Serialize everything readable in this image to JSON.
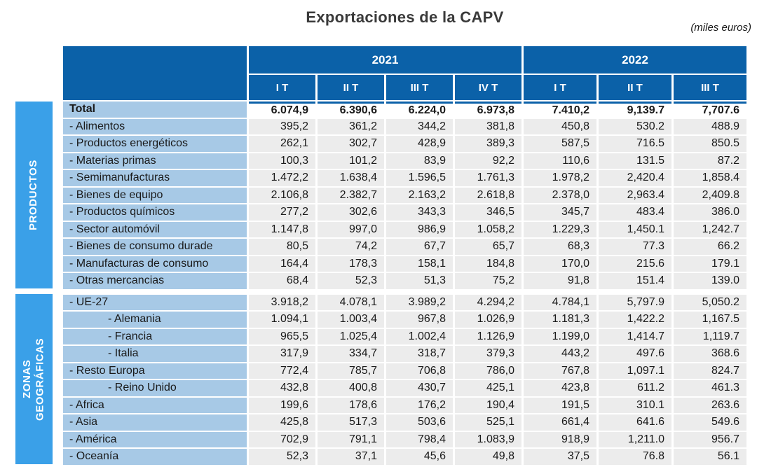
{
  "title": "Exportaciones de la CAPV",
  "units_note": "(miles euros)",
  "colors": {
    "header_blue": "#0b61a8",
    "strip_blue": "#3aa0e8",
    "row_label_blue": "#a7c9e6",
    "cell_gray": "#ececec",
    "total_row_bg": "#ffffff",
    "text": "#1a1a1a"
  },
  "table": {
    "year_groups": [
      {
        "label": "2021",
        "quarters": [
          "I T",
          "II T",
          "III T",
          "IV T"
        ]
      },
      {
        "label": "2022",
        "quarters": [
          "I T",
          "II T",
          "III T"
        ]
      }
    ],
    "sections": [
      {
        "strip": {
          "lines": [
            "PRODUCTOS"
          ]
        },
        "rows": [
          {
            "label": "Total",
            "indent": 0,
            "emphasis": "total",
            "values": [
              "6.074,9",
              "6.390,6",
              "6.224,0",
              "6.973,8",
              "7.410,2",
              "9,139.7",
              "7,707.6"
            ]
          },
          {
            "label": "- Alimentos",
            "indent": 0,
            "values": [
              "395,2",
              "361,2",
              "344,2",
              "381,8",
              "450,8",
              "530.2",
              "488.9"
            ]
          },
          {
            "label": "- Productos energéticos",
            "indent": 0,
            "values": [
              "262,1",
              "302,7",
              "428,9",
              "389,3",
              "587,5",
              "716.5",
              "850.5"
            ]
          },
          {
            "label": "- Materias primas",
            "indent": 0,
            "values": [
              "100,3",
              "101,2",
              "83,9",
              "92,2",
              "110,6",
              "131.5",
              "87.2"
            ]
          },
          {
            "label": "- Semimanufacturas",
            "indent": 0,
            "values": [
              "1.472,2",
              "1.638,4",
              "1.596,5",
              "1.761,3",
              "1.978,2",
              "2,420.4",
              "1,858.4"
            ]
          },
          {
            "label": "- Bienes de equipo",
            "indent": 0,
            "values": [
              "2.106,8",
              "2.382,7",
              "2.163,2",
              "2.618,8",
              "2.378,0",
              "2,963.4",
              "2,409.8"
            ]
          },
          {
            "label": "- Productos químicos",
            "indent": 0,
            "values": [
              "277,2",
              "302,6",
              "343,3",
              "346,5",
              "345,7",
              "483.4",
              "386.0"
            ]
          },
          {
            "label": "- Sector automóvil",
            "indent": 0,
            "values": [
              "1.147,8",
              "997,0",
              "986,9",
              "1.058,2",
              "1.229,3",
              "1,450.1",
              "1,242.7"
            ]
          },
          {
            "label": "- Bienes de consumo durade",
            "indent": 0,
            "values": [
              "80,5",
              "74,2",
              "67,7",
              "65,7",
              "68,3",
              "77.3",
              "66.2"
            ]
          },
          {
            "label": "- Manufacturas de consumo",
            "indent": 0,
            "values": [
              "164,4",
              "178,3",
              "158,1",
              "184,8",
              "170,0",
              "215.6",
              "179.1"
            ]
          },
          {
            "label": "- Otras mercancias",
            "indent": 0,
            "values": [
              "68,4",
              "52,3",
              "51,3",
              "75,2",
              "91,8",
              "151.4",
              "139.0"
            ]
          }
        ]
      },
      {
        "strip": {
          "lines": [
            "ZONAS",
            "GEOGRÁFICAS"
          ]
        },
        "rows": [
          {
            "label": "- UE-27",
            "indent": 0,
            "values": [
              "3.918,2",
              "4.078,1",
              "3.989,2",
              "4.294,2",
              "4.784,1",
              "5,797.9",
              "5,050.2"
            ]
          },
          {
            "label": "- Alemania",
            "indent": 1,
            "values": [
              "1.094,1",
              "1.003,4",
              "967,8",
              "1.026,9",
              "1.181,3",
              "1,422.2",
              "1,167.5"
            ]
          },
          {
            "label": "- Francia",
            "indent": 1,
            "values": [
              "965,5",
              "1.025,4",
              "1.002,4",
              "1.126,9",
              "1.199,0",
              "1,414.7",
              "1,119.7"
            ]
          },
          {
            "label": "- Italia",
            "indent": 1,
            "values": [
              "317,9",
              "334,7",
              "318,7",
              "379,3",
              "443,2",
              "497.6",
              "368.6"
            ]
          },
          {
            "label": "- Resto Europa",
            "indent": 0,
            "values": [
              "772,4",
              "785,7",
              "706,8",
              "786,0",
              "767,8",
              "1,097.1",
              "824.7"
            ]
          },
          {
            "label": "- Reino Unido",
            "indent": 1,
            "values": [
              "432,8",
              "400,8",
              "430,7",
              "425,1",
              "423,8",
              "611.2",
              "461.3"
            ]
          },
          {
            "label": "- Africa",
            "indent": 0,
            "values": [
              "199,6",
              "178,6",
              "176,2",
              "190,4",
              "191,5",
              "310.1",
              "263.6"
            ]
          },
          {
            "label": "- Asia",
            "indent": 0,
            "values": [
              "425,8",
              "517,3",
              "503,6",
              "525,1",
              "661,4",
              "641.6",
              "549.6"
            ]
          },
          {
            "label": "- América",
            "indent": 0,
            "values": [
              "702,9",
              "791,1",
              "798,4",
              "1.083,9",
              "918,9",
              "1,211.0",
              "956.7"
            ]
          },
          {
            "label": "- Oceanía",
            "indent": 0,
            "values": [
              "52,3",
              "37,1",
              "45,6",
              "49,8",
              "37,5",
              "76.8",
              "56.1"
            ]
          }
        ]
      }
    ]
  },
  "chart_data": {
    "type": "table",
    "title": "Exportaciones de la CAPV",
    "units": "miles euros",
    "columns": [
      "2021 I T",
      "2021 II T",
      "2021 III T",
      "2021 IV T",
      "2022 I T",
      "2022 II T",
      "2022 III T"
    ],
    "rows": [
      {
        "name": "Total",
        "group": "TOTAL",
        "values": [
          6074.9,
          6390.6,
          6224.0,
          6973.8,
          7410.2,
          9139.7,
          7707.6
        ]
      },
      {
        "name": "Alimentos",
        "group": "PRODUCTOS",
        "values": [
          395.2,
          361.2,
          344.2,
          381.8,
          450.8,
          530.2,
          488.9
        ]
      },
      {
        "name": "Productos energéticos",
        "group": "PRODUCTOS",
        "values": [
          262.1,
          302.7,
          428.9,
          389.3,
          587.5,
          716.5,
          850.5
        ]
      },
      {
        "name": "Materias primas",
        "group": "PRODUCTOS",
        "values": [
          100.3,
          101.2,
          83.9,
          92.2,
          110.6,
          131.5,
          87.2
        ]
      },
      {
        "name": "Semimanufacturas",
        "group": "PRODUCTOS",
        "values": [
          1472.2,
          1638.4,
          1596.5,
          1761.3,
          1978.2,
          2420.4,
          1858.4
        ]
      },
      {
        "name": "Bienes de equipo",
        "group": "PRODUCTOS",
        "values": [
          2106.8,
          2382.7,
          2163.2,
          2618.8,
          2378.0,
          2963.4,
          2409.8
        ]
      },
      {
        "name": "Productos químicos",
        "group": "PRODUCTOS",
        "values": [
          277.2,
          302.6,
          343.3,
          346.5,
          345.7,
          483.4,
          386.0
        ]
      },
      {
        "name": "Sector automóvil",
        "group": "PRODUCTOS",
        "values": [
          1147.8,
          997.0,
          986.9,
          1058.2,
          1229.3,
          1450.1,
          1242.7
        ]
      },
      {
        "name": "Bienes de consumo duradero",
        "group": "PRODUCTOS",
        "values": [
          80.5,
          74.2,
          67.7,
          65.7,
          68.3,
          77.3,
          66.2
        ]
      },
      {
        "name": "Manufacturas de consumo",
        "group": "PRODUCTOS",
        "values": [
          164.4,
          178.3,
          158.1,
          184.8,
          170.0,
          215.6,
          179.1
        ]
      },
      {
        "name": "Otras mercancias",
        "group": "PRODUCTOS",
        "values": [
          68.4,
          52.3,
          51.3,
          75.2,
          91.8,
          151.4,
          139.0
        ]
      },
      {
        "name": "UE-27",
        "group": "ZONAS GEOGRÁFICAS",
        "values": [
          3918.2,
          4078.1,
          3989.2,
          4294.2,
          4784.1,
          5797.9,
          5050.2
        ]
      },
      {
        "name": "Alemania",
        "group": "ZONAS GEOGRÁFICAS",
        "values": [
          1094.1,
          1003.4,
          967.8,
          1026.9,
          1181.3,
          1422.2,
          1167.5
        ]
      },
      {
        "name": "Francia",
        "group": "ZONAS GEOGRÁFICAS",
        "values": [
          965.5,
          1025.4,
          1002.4,
          1126.9,
          1199.0,
          1414.7,
          1119.7
        ]
      },
      {
        "name": "Italia",
        "group": "ZONAS GEOGRÁFICAS",
        "values": [
          317.9,
          334.7,
          318.7,
          379.3,
          443.2,
          497.6,
          368.6
        ]
      },
      {
        "name": "Resto Europa",
        "group": "ZONAS GEOGRÁFICAS",
        "values": [
          772.4,
          785.7,
          706.8,
          786.0,
          767.8,
          1097.1,
          824.7
        ]
      },
      {
        "name": "Reino Unido",
        "group": "ZONAS GEOGRÁFICAS",
        "values": [
          432.8,
          400.8,
          430.7,
          425.1,
          423.8,
          611.2,
          461.3
        ]
      },
      {
        "name": "Africa",
        "group": "ZONAS GEOGRÁFICAS",
        "values": [
          199.6,
          178.6,
          176.2,
          190.4,
          191.5,
          310.1,
          263.6
        ]
      },
      {
        "name": "Asia",
        "group": "ZONAS GEOGRÁFICAS",
        "values": [
          425.8,
          517.3,
          503.6,
          525.1,
          661.4,
          641.6,
          549.6
        ]
      },
      {
        "name": "América",
        "group": "ZONAS GEOGRÁFICAS",
        "values": [
          702.9,
          791.1,
          798.4,
          1083.9,
          918.9,
          1211.0,
          956.7
        ]
      },
      {
        "name": "Oceanía",
        "group": "ZONAS GEOGRÁFICAS",
        "values": [
          52.3,
          37.1,
          45.6,
          49.8,
          37.5,
          76.8,
          56.1
        ]
      }
    ]
  }
}
